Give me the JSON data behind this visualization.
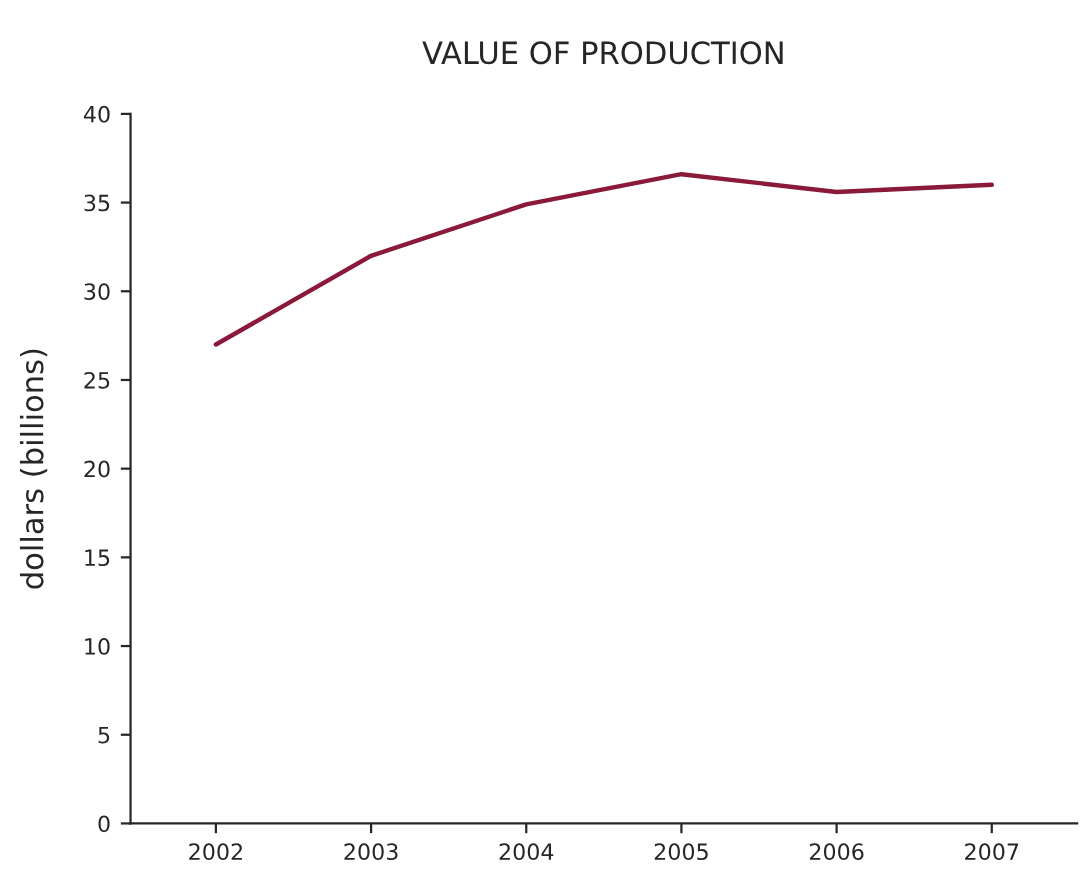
{
  "chart_data": {
    "type": "line",
    "title": "VALUE OF PRODUCTION",
    "ylabel": "dollars (billions)",
    "categories": [
      "2002",
      "2003",
      "2004",
      "2005",
      "2006",
      "2007"
    ],
    "series": [
      {
        "color": "#8b1a3a",
        "values": [
          27.0,
          32.0,
          34.9,
          36.6,
          35.6,
          36.0
        ]
      }
    ],
    "ylim": [
      0,
      40
    ],
    "yticks": [
      0,
      5,
      10,
      15,
      20,
      25,
      30,
      35,
      40
    ],
    "grid": false,
    "legend": false
  }
}
